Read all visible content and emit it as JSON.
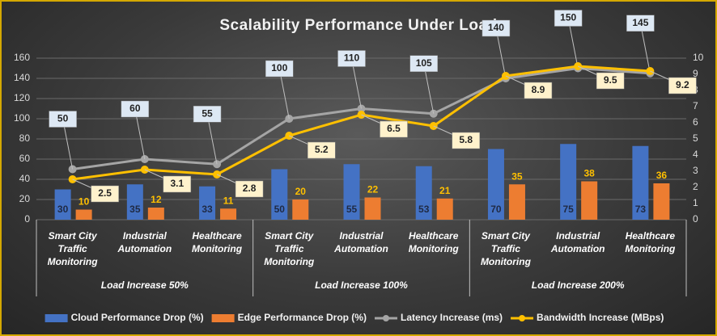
{
  "chart_data": {
    "type": "combo",
    "title": "Scalability Performance Under Load",
    "categories": [
      "Smart City Traffic Monitoring",
      "Industrial Automation",
      "Healthcare Monitoring",
      "Smart City Traffic Monitoring",
      "Industrial Automation",
      "Healthcare Monitoring",
      "Smart City Traffic Monitoring",
      "Industrial Automation",
      "Healthcare Monitoring"
    ],
    "groups": [
      "Load Increase 50%",
      "Load Increase 100%",
      "Load Increase 200%"
    ],
    "series": [
      {
        "name": "Cloud Performance Drop (%)",
        "type": "bar",
        "color": "#4472c4",
        "values": [
          30,
          35,
          33,
          50,
          55,
          53,
          70,
          75,
          73
        ]
      },
      {
        "name": "Edge Performance Drop (%)",
        "type": "bar",
        "color": "#ed7d31",
        "values": [
          10,
          12,
          11,
          20,
          22,
          21,
          35,
          38,
          36
        ]
      },
      {
        "name": "Latency Increase (ms)",
        "type": "line",
        "color": "#a5a5a5",
        "values": [
          50,
          60,
          55,
          100,
          110,
          105,
          140,
          150,
          145
        ]
      },
      {
        "name": "Bandwidth Increase (MBps)",
        "type": "line",
        "color": "#ffc000",
        "axis": "y2",
        "values": [
          2.5,
          3.1,
          2.8,
          5.2,
          6.5,
          5.8,
          8.9,
          9.5,
          9.2
        ]
      }
    ],
    "ylim": [
      0,
      160
    ],
    "yticks": [
      0,
      20,
      40,
      60,
      80,
      100,
      120,
      140,
      160
    ],
    "y2lim": [
      0,
      10
    ],
    "y2ticks": [
      0,
      1,
      2,
      3,
      4,
      5,
      6,
      7,
      8,
      9,
      10
    ],
    "grid": true,
    "legend": "bottom"
  }
}
